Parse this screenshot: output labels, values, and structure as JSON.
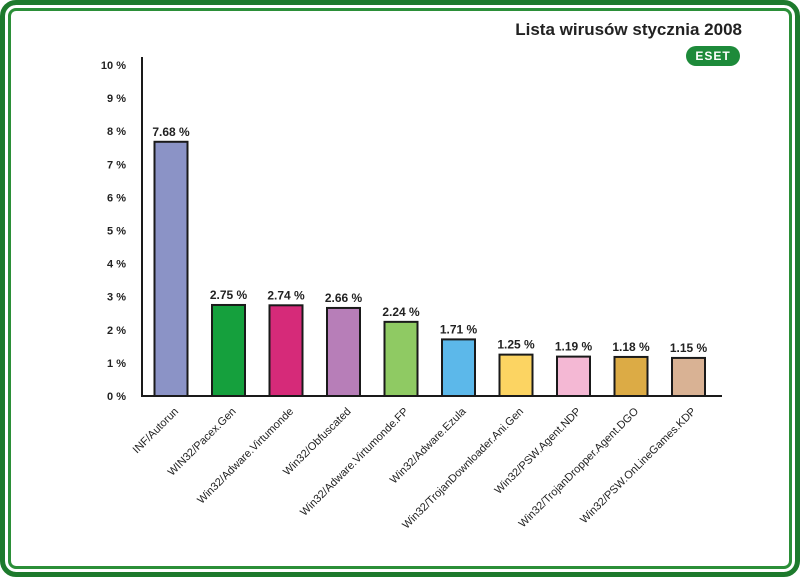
{
  "chart_data": {
    "type": "bar",
    "title": "Lista wirusów stycznia 2008",
    "logo_text": "ESET",
    "categories": [
      "INF/Autorun",
      "WIN32/Pacex.Gen",
      "Win32/Adware.Virtumonde",
      "Win32/Obfuscated",
      "Win32/Adware.Virtumonde.FP",
      "Win32/Adware.Ezula",
      "Win32/TrojanDownloader.Ani.Gen",
      "Win32/PSW.Agent.NDP",
      "Win32/TrojanDropper.Agent.DGO",
      "Win32/PSW.OnLineGames.KDP"
    ],
    "values": [
      7.68,
      2.75,
      2.74,
      2.66,
      2.24,
      1.71,
      1.25,
      1.19,
      1.18,
      1.15
    ],
    "value_labels": [
      "7.68 %",
      "2.75 %",
      "2.74 %",
      "2.66 %",
      "2.24 %",
      "1.71 %",
      "1.25 %",
      "1.19 %",
      "1.18 %",
      "1.15 %"
    ],
    "colors": [
      "#8b93c6",
      "#15a03d",
      "#d62a79",
      "#b77eb8",
      "#8fca63",
      "#5cb8ea",
      "#fcd462",
      "#f4b8d4",
      "#dcab45",
      "#d9b294"
    ],
    "ytick_labels": [
      "0 %",
      "1 %",
      "2 %",
      "3 %",
      "4 %",
      "5 %",
      "6 %",
      "7 %",
      "8 %",
      "9 %",
      "10 %"
    ],
    "ylim": [
      0,
      10
    ],
    "xlabel": "",
    "ylabel": "",
    "grid": false,
    "legend": "none"
  },
  "colors": {
    "frame": "#1d7a2c",
    "logo": "#1d8a3a",
    "bar_outline": "#1a1a1a",
    "axis": "#1a1a1a"
  }
}
